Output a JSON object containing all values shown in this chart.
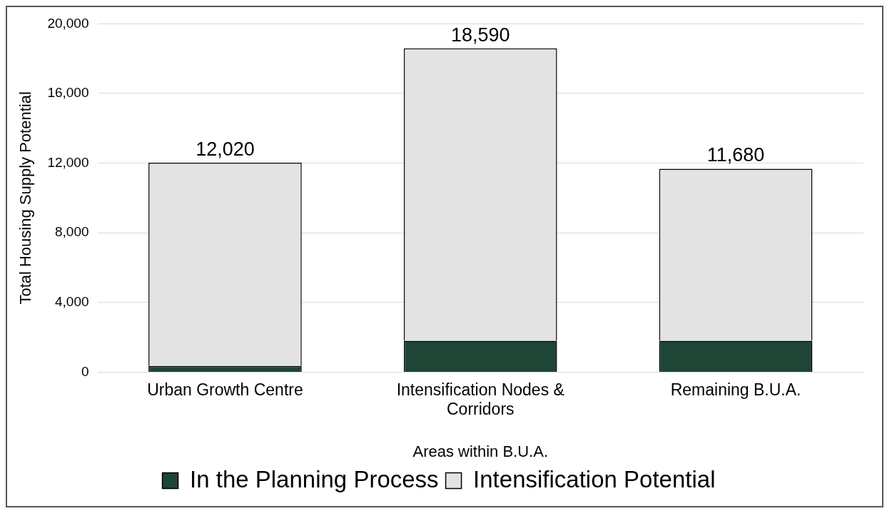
{
  "chart_data": {
    "type": "bar",
    "stacked": true,
    "xlabel": "Areas within B.U.A.",
    "ylabel": "Total Housing Supply Potential",
    "categories": [
      "Urban Growth Centre",
      "Intensification Nodes & Corridors",
      "Remaining B.U.A."
    ],
    "series": [
      {
        "name": "In the Planning Process",
        "color": "#1e4535",
        "values": [
          350,
          1800,
          1800
        ]
      },
      {
        "name": "Intensification Potential",
        "color": "#e3e3e3",
        "values": [
          11670,
          16790,
          9880
        ]
      }
    ],
    "totals": [
      "12,020",
      "18,590",
      "11,680"
    ],
    "ylim": [
      0,
      20000
    ],
    "yticks": [
      {
        "value": 0,
        "label": "0"
      },
      {
        "value": 4000,
        "label": "4,000"
      },
      {
        "value": 8000,
        "label": "8,000"
      },
      {
        "value": 12000,
        "label": "12,000"
      },
      {
        "value": 16000,
        "label": "16,000"
      },
      {
        "value": 20000,
        "label": "20,000"
      }
    ],
    "grid": "y",
    "legend": "bottom"
  }
}
